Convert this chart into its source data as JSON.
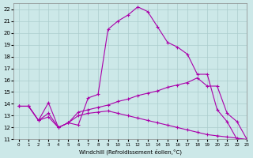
{
  "xlabel": "Windchill (Refroidissement éolien,°C)",
  "bg_color": "#cce8e8",
  "grid_color": "#aacccc",
  "line_color": "#aa00aa",
  "xlim": [
    -0.5,
    23
  ],
  "ylim": [
    11,
    22.5
  ],
  "xticks": [
    0,
    1,
    2,
    3,
    4,
    5,
    6,
    7,
    8,
    9,
    10,
    11,
    12,
    13,
    14,
    15,
    16,
    17,
    18,
    19,
    20,
    21,
    22,
    23
  ],
  "yticks": [
    11,
    12,
    13,
    14,
    15,
    16,
    17,
    18,
    19,
    20,
    21,
    22
  ],
  "line1_x": [
    0,
    1,
    2,
    3,
    4,
    5,
    6,
    7,
    8,
    9,
    10,
    11,
    12,
    13,
    14,
    15,
    16,
    17,
    18,
    19,
    20,
    21,
    22,
    23
  ],
  "line1_y": [
    13.8,
    13.8,
    12.6,
    14.1,
    12.0,
    12.4,
    12.2,
    14.5,
    14.8,
    20.3,
    21.0,
    21.5,
    22.2,
    21.8,
    20.5,
    19.2,
    18.8,
    18.2,
    16.5,
    16.5,
    13.5,
    12.5,
    11.0,
    null
  ],
  "line2_x": [
    0,
    1,
    2,
    3,
    4,
    5,
    6,
    7,
    8,
    9,
    10,
    11,
    12,
    13,
    14,
    15,
    16,
    17,
    18,
    19,
    20,
    21,
    22,
    23
  ],
  "line2_y": [
    13.8,
    13.8,
    12.6,
    13.2,
    12.0,
    12.4,
    13.3,
    13.5,
    13.7,
    13.9,
    14.2,
    14.4,
    14.7,
    14.9,
    15.1,
    15.4,
    15.6,
    15.8,
    16.2,
    15.5,
    15.5,
    13.2,
    12.5,
    11.0
  ],
  "line3_x": [
    0,
    1,
    2,
    3,
    4,
    5,
    6,
    7,
    8,
    9,
    10,
    11,
    12,
    13,
    14,
    15,
    16,
    17,
    18,
    19,
    20,
    21,
    22,
    23
  ],
  "line3_y": [
    13.8,
    13.8,
    12.6,
    12.9,
    12.0,
    12.4,
    13.0,
    13.2,
    13.3,
    13.4,
    13.2,
    13.0,
    12.8,
    12.6,
    12.4,
    12.2,
    12.0,
    11.8,
    11.6,
    11.4,
    11.3,
    11.2,
    11.1,
    11.0
  ]
}
